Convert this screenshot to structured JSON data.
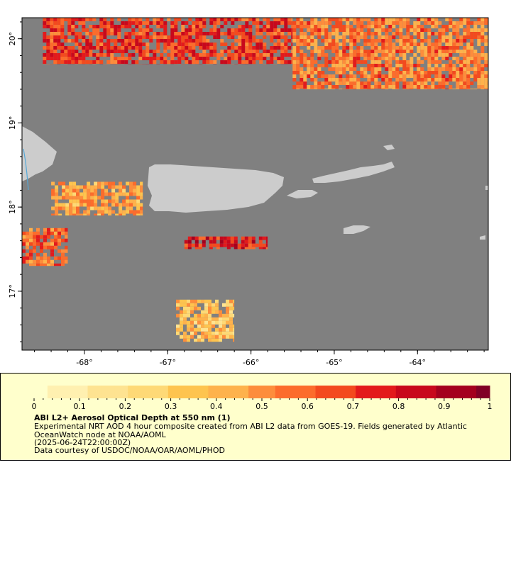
{
  "map": {
    "axes": {
      "lon_range": [
        -68.75,
        -63.15
      ],
      "lat_range": [
        16.3,
        20.25
      ],
      "x_ticks": [
        {
          "value": -68,
          "label": "-68°"
        },
        {
          "value": -67,
          "label": "-67°"
        },
        {
          "value": -66,
          "label": "-66°"
        },
        {
          "value": -65,
          "label": "-65°"
        },
        {
          "value": -64,
          "label": "-64°"
        }
      ],
      "y_ticks": [
        {
          "value": 20,
          "label": "20°"
        },
        {
          "value": 19,
          "label": "19°"
        },
        {
          "value": 18,
          "label": "18°"
        },
        {
          "value": 17,
          "label": "17°"
        }
      ]
    },
    "colors": {
      "nodata": "#808080",
      "land": "#cccccc",
      "water_line": "#55a8d8"
    },
    "aerosol_regions": [
      {
        "lon": [
          -68.5,
          -65.5
        ],
        "lat": [
          19.7,
          20.25
        ],
        "aod": 0.7
      },
      {
        "lon": [
          -65.5,
          -63.15
        ],
        "lat": [
          19.4,
          20.25
        ],
        "aod": 0.55
      },
      {
        "lon": [
          -66.8,
          -65.8
        ],
        "lat": [
          17.5,
          17.65
        ],
        "aod": 0.75
      },
      {
        "lon": [
          -68.75,
          -68.2
        ],
        "lat": [
          17.3,
          17.75
        ],
        "aod": 0.6
      },
      {
        "lon": [
          -68.4,
          -67.3
        ],
        "lat": [
          17.9,
          18.3
        ],
        "aod": 0.45
      },
      {
        "lon": [
          -66.9,
          -66.2
        ],
        "lat": [
          16.4,
          16.9
        ],
        "aod": 0.35
      }
    ]
  },
  "colorbar": {
    "min": 0,
    "max": 1,
    "tick_labels": [
      "0",
      "0.1",
      "0.2",
      "0.3",
      "0.4",
      "0.5",
      "0.6",
      "0.7",
      "0.8",
      "0.9",
      "1"
    ],
    "palette": [
      "#ffffcc",
      "#fff0b0",
      "#fee391",
      "#fed976",
      "#fec44f",
      "#feb24c",
      "#fd8d3c",
      "#fc6c2c",
      "#f34a1e",
      "#e31a1c",
      "#c8081c",
      "#a4001e",
      "#800026"
    ]
  },
  "legend": {
    "title": "ABI L2+ Aerosol Optical Depth at 550 nm (1)",
    "description": "Experimental NRT AOD 4 hour composite created from ABI L2 data from GOES-19. Fields generated by Atlantic OceanWatch node at NOAA/AOML",
    "time": "(2025-06-24T22:00:00Z)",
    "credit": "Data courtesy of USDOC/NOAA/OAR/AOML/PHOD"
  }
}
